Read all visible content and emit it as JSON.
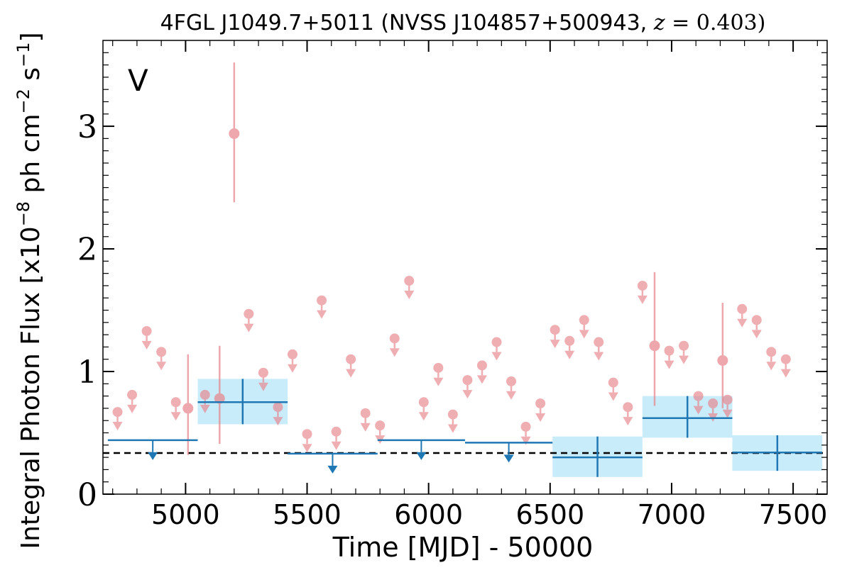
{
  "chart_data": {
    "type": "scatter",
    "title_plain": "4FGL J1049.7+5011 (NVSS J104857+500943, ",
    "title_z_label": "z",
    "title_z_value": " = 0.403)",
    "xlabel": "Time [MJD] - 50000",
    "ylabel": "Integral Photon Flux [x10",
    "ylabel_exp": "−8",
    "ylabel_mid": " ph cm",
    "ylabel_exp2": "−2",
    "ylabel_end": " s",
    "ylabel_exp3": "−1",
    "ylabel_close": "]",
    "panel_label": "V",
    "xlim": [
      4660,
      7640
    ],
    "ylim": [
      0,
      3.7
    ],
    "xticks": [
      5000,
      5500,
      6000,
      6500,
      7000,
      7500
    ],
    "yticks": [
      0,
      1,
      2,
      3
    ],
    "xtick_labels": [
      "5000",
      "5500",
      "6000",
      "6500",
      "7000",
      "7500"
    ],
    "ytick_labels": [
      "0",
      "1",
      "2",
      "3"
    ],
    "baseline": 0.335,
    "colors": {
      "fine": "#e8838a",
      "coarse": "#1f77b4",
      "band": "#c9ecfb",
      "baseline": "#000000",
      "panel_label": "#d62728"
    },
    "fine_upper_limits": [
      {
        "x": 4720,
        "y": 0.67
      },
      {
        "x": 4780,
        "y": 0.81
      },
      {
        "x": 4840,
        "y": 1.33
      },
      {
        "x": 4900,
        "y": 1.16
      },
      {
        "x": 4960,
        "y": 0.75
      },
      {
        "x": 5080,
        "y": 0.81
      },
      {
        "x": 5260,
        "y": 1.47
      },
      {
        "x": 5320,
        "y": 0.99
      },
      {
        "x": 5380,
        "y": 0.71
      },
      {
        "x": 5440,
        "y": 1.14
      },
      {
        "x": 5500,
        "y": 0.49
      },
      {
        "x": 5560,
        "y": 1.58
      },
      {
        "x": 5620,
        "y": 0.51
      },
      {
        "x": 5680,
        "y": 1.1
      },
      {
        "x": 5740,
        "y": 0.66
      },
      {
        "x": 5800,
        "y": 0.56
      },
      {
        "x": 5860,
        "y": 1.27
      },
      {
        "x": 5920,
        "y": 1.74
      },
      {
        "x": 5980,
        "y": 0.75
      },
      {
        "x": 6040,
        "y": 1.03
      },
      {
        "x": 6100,
        "y": 0.65
      },
      {
        "x": 6160,
        "y": 0.93
      },
      {
        "x": 6220,
        "y": 1.05
      },
      {
        "x": 6280,
        "y": 1.24
      },
      {
        "x": 6340,
        "y": 0.92
      },
      {
        "x": 6400,
        "y": 0.55
      },
      {
        "x": 6460,
        "y": 0.74
      },
      {
        "x": 6520,
        "y": 1.34
      },
      {
        "x": 6580,
        "y": 1.25
      },
      {
        "x": 6640,
        "y": 1.42
      },
      {
        "x": 6700,
        "y": 1.24
      },
      {
        "x": 6760,
        "y": 0.91
      },
      {
        "x": 6820,
        "y": 0.71
      },
      {
        "x": 6880,
        "y": 1.7
      },
      {
        "x": 6990,
        "y": 1.17
      },
      {
        "x": 7050,
        "y": 1.21
      },
      {
        "x": 7110,
        "y": 0.8
      },
      {
        "x": 7170,
        "y": 0.74
      },
      {
        "x": 7230,
        "y": 0.77
      },
      {
        "x": 7290,
        "y": 1.51
      },
      {
        "x": 7350,
        "y": 1.42
      },
      {
        "x": 7410,
        "y": 1.16
      },
      {
        "x": 7470,
        "y": 1.1
      }
    ],
    "fine_detections": [
      {
        "x": 5010,
        "y": 0.7,
        "lo": 0.32,
        "hi": 1.14
      },
      {
        "x": 5140,
        "y": 0.78,
        "lo": 0.41,
        "hi": 1.21
      },
      {
        "x": 5200,
        "y": 2.94,
        "lo": 2.38,
        "hi": 3.52
      },
      {
        "x": 6930,
        "y": 1.21,
        "lo": 0.72,
        "hi": 1.81
      },
      {
        "x": 7210,
        "y": 1.09,
        "lo": 0.7,
        "hi": 1.56
      }
    ],
    "coarse_upper_limits": [
      {
        "x0": 4680,
        "x1": 5050,
        "y": 0.44,
        "xc": 4865
      },
      {
        "x0": 5420,
        "x1": 5790,
        "y": 0.33,
        "xc": 5605
      },
      {
        "x0": 5790,
        "x1": 6150,
        "y": 0.44,
        "xc": 5970
      },
      {
        "x0": 6150,
        "x1": 6510,
        "y": 0.42,
        "xc": 6330
      }
    ],
    "coarse_detections": [
      {
        "x0": 5050,
        "x1": 5420,
        "y": 0.75,
        "lo": 0.57,
        "hi": 0.94
      },
      {
        "x0": 6510,
        "x1": 6880,
        "y": 0.3,
        "lo": 0.14,
        "hi": 0.47
      },
      {
        "x0": 6880,
        "x1": 7250,
        "y": 0.62,
        "lo": 0.46,
        "hi": 0.8
      },
      {
        "x0": 7250,
        "x1": 7620,
        "y": 0.34,
        "lo": 0.19,
        "hi": 0.48
      }
    ]
  }
}
